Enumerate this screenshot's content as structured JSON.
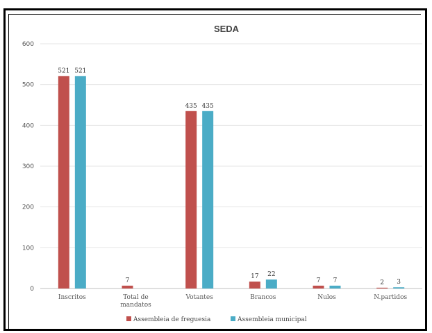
{
  "chart_data": {
    "type": "bar",
    "title": "SEDA",
    "categories": [
      [
        "Inscritos"
      ],
      [
        "Total de",
        "mandatos"
      ],
      [
        "Votantes"
      ],
      [
        "Brancos"
      ],
      [
        "Nulos"
      ],
      [
        "N.partidos"
      ]
    ],
    "series": [
      {
        "name": "Assembleia de freguesia",
        "color": "#c0504d",
        "values": [
          521,
          7,
          435,
          17,
          7,
          2
        ]
      },
      {
        "name": "Assembleia municipal",
        "color": "#4bacc6",
        "values": [
          521,
          null,
          435,
          22,
          7,
          3
        ]
      }
    ],
    "ylim": [
      0,
      600
    ],
    "yticks": [
      0,
      100,
      200,
      300,
      400,
      500,
      600
    ],
    "grid": true,
    "legend": "bottom"
  }
}
